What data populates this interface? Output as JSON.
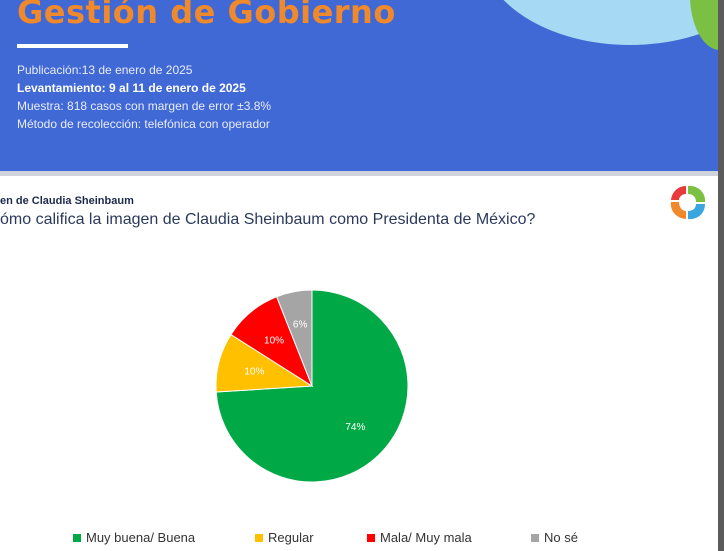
{
  "banner": {
    "title": "Gestión de Gobierno",
    "publication": "Publicación:13 de enero de 2025",
    "fieldwork": "Levantamiento: 9 al 11 de enero de 2025",
    "sample": "Muestra: 818 casos con margen de error ±3.8%",
    "method": "Método de recolección: telefónica con operador"
  },
  "slide": {
    "section_label": "en de Claudia Sheinbaum",
    "question": "ómo califica la imagen de Claudia Sheinbaum como Presidenta de México?"
  },
  "chart_data": {
    "type": "pie",
    "categories": [
      "Muy buena/ Buena",
      "Regular",
      "Mala/ Muy mala",
      "No sé"
    ],
    "values": [
      74,
      10,
      10,
      6
    ],
    "labels": [
      "74%",
      "10%",
      "10%",
      "6%"
    ],
    "colors": [
      "#00a846",
      "#ffc000",
      "#ff0000",
      "#a5a5a5"
    ],
    "legend_position": "bottom"
  }
}
